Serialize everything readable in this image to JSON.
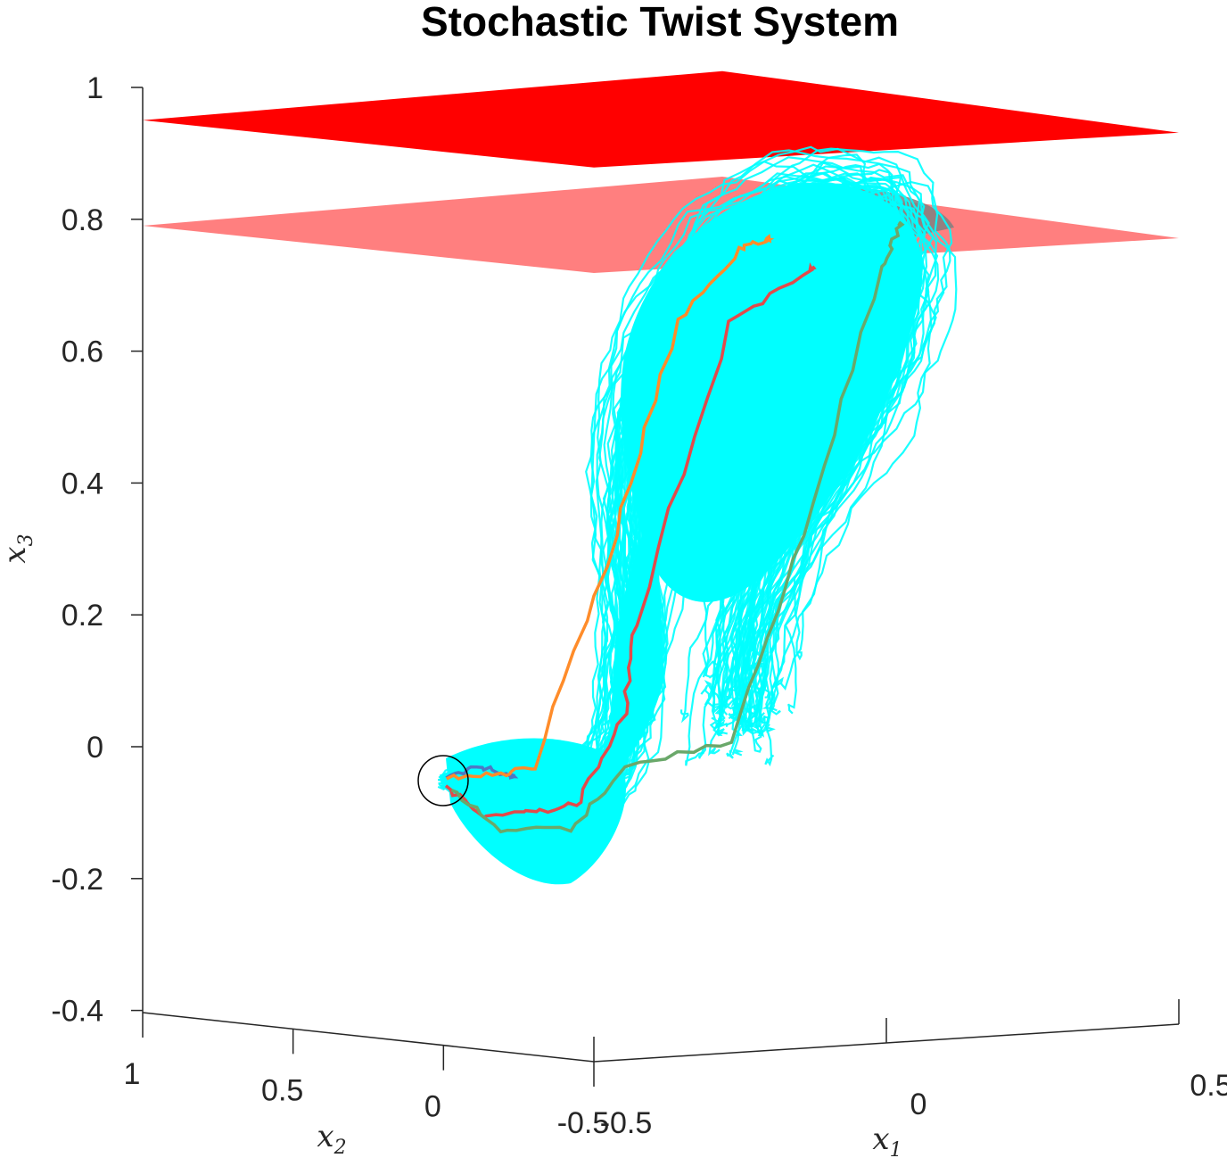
{
  "chart_data": {
    "type": "line",
    "projection": "3d",
    "title": "Stochastic Twist System",
    "axes": {
      "x1": {
        "label_base": "x",
        "label_sub": "1",
        "ticks": [
          "-0.5",
          "0",
          "0.5"
        ],
        "range": [
          -0.5,
          0.5
        ]
      },
      "x2": {
        "label_base": "x",
        "label_sub": "2",
        "ticks": [
          "-0.5",
          "0",
          "0.5",
          "1"
        ],
        "range": [
          -0.5,
          1
        ]
      },
      "x3": {
        "label_base": "x",
        "label_sub": "3",
        "ticks": [
          "-0.4",
          "-0.2",
          "0",
          "0.2",
          "0.4",
          "0.6",
          "0.8",
          "1"
        ],
        "range": [
          -0.4,
          1
        ]
      }
    },
    "grid": false,
    "legend": "none",
    "planes": [
      {
        "x3": 0.98,
        "color": "#ff0000",
        "opacity": 1.0
      },
      {
        "x3": 0.82,
        "color": "#ff0000",
        "opacity": 0.5
      }
    ],
    "start_marker": {
      "shape": "circle",
      "x1": -0.5,
      "x2": 0,
      "x3": -0.05
    },
    "ensemble": {
      "color": "#00ffff",
      "description_visible": false
    },
    "highlighted_paths": [
      {
        "color": "#4d78c4"
      },
      {
        "color": "#ff8c2a"
      },
      {
        "color": "#e34a4a"
      },
      {
        "color": "#6aa86a"
      }
    ]
  }
}
